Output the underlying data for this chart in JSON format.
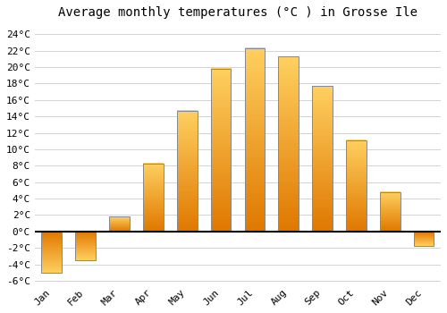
{
  "title": "Average monthly temperatures (°C ) in Grosse Ile",
  "months": [
    "Jan",
    "Feb",
    "Mar",
    "Apr",
    "May",
    "Jun",
    "Jul",
    "Aug",
    "Sep",
    "Oct",
    "Nov",
    "Dec"
  ],
  "values": [
    -5.0,
    -3.5,
    1.8,
    8.3,
    14.7,
    19.8,
    22.3,
    21.3,
    17.7,
    11.1,
    4.8,
    -1.7
  ],
  "bar_color_top": "#FFB300",
  "bar_color_bottom": "#FF8C00",
  "bar_edge_color": "#888888",
  "ylim_min": -6,
  "ylim_max": 25,
  "yticks": [
    -6,
    -4,
    -2,
    0,
    2,
    4,
    6,
    8,
    10,
    12,
    14,
    16,
    18,
    20,
    22,
    24
  ],
  "background_color": "#ffffff",
  "grid_color": "#cccccc",
  "title_fontsize": 10,
  "bar_width": 0.6
}
